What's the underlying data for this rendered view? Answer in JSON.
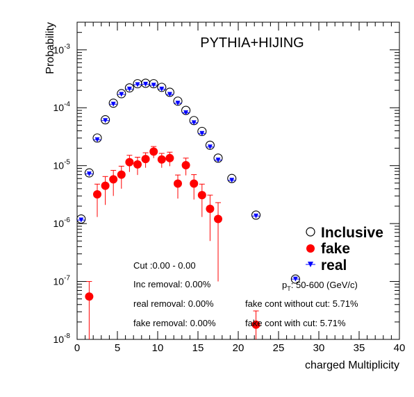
{
  "chart_data": {
    "type": "scatter",
    "title": "PYTHIA+HIJING",
    "xlabel": "charged Multiplicity",
    "ylabel": "Probability",
    "xlim": [
      0,
      40
    ],
    "ylim": [
      1e-08,
      0.003
    ],
    "y_scale": "log",
    "x_ticks": [
      "0",
      "5",
      "10",
      "15",
      "20",
      "25",
      "30",
      "35",
      "40"
    ],
    "y_ticks": [
      {
        "base": "10",
        "exp": "-3",
        "value": 0.001
      },
      {
        "base": "10",
        "exp": "-4",
        "value": 0.0001
      },
      {
        "base": "10",
        "exp": "-5",
        "value": 1e-05
      },
      {
        "base": "10",
        "exp": "-6",
        "value": 1e-06
      },
      {
        "base": "10",
        "exp": "-7",
        "value": 1e-07
      },
      {
        "base": "10",
        "exp": "-8",
        "value": 1e-08
      }
    ],
    "legend_position": "right",
    "series": [
      {
        "name": "Inclusive",
        "marker": "open-circle",
        "color": "#000000",
        "x": [
          0.5,
          1.5,
          2.5,
          3.5,
          4.5,
          5.5,
          6.5,
          7.5,
          8.5,
          9.5,
          10.5,
          11.5,
          12.5,
          13.5,
          14.5,
          15.5,
          16.5,
          17.5,
          19.2,
          22.2,
          27.1
        ],
        "y": [
          1.2e-06,
          7.5e-06,
          3e-05,
          6.2e-05,
          0.00012,
          0.000175,
          0.00022,
          0.00026,
          0.000265,
          0.00026,
          0.000225,
          0.000185,
          0.00013,
          9e-05,
          6e-05,
          3.9e-05,
          2.25e-05,
          1.35e-05,
          6e-06,
          1.4e-06,
          1.1e-07
        ]
      },
      {
        "name": "fake",
        "marker": "filled-circle",
        "color": "#ff0000",
        "x": [
          1.5,
          2.5,
          3.5,
          4.5,
          5.5,
          6.5,
          7.5,
          8.5,
          9.5,
          10.5,
          11.5,
          12.5,
          13.5,
          14.5,
          15.5,
          16.5,
          17.5,
          22.2
        ],
        "y": [
          5.5e-08,
          3.2e-06,
          4.5e-06,
          5.8e-06,
          7e-06,
          1.15e-05,
          1.05e-05,
          1.3e-05,
          1.75e-05,
          1.28e-05,
          1.35e-05,
          4.9e-06,
          1.02e-05,
          4.9e-06,
          3.1e-06,
          1.8e-06,
          1.2e-06,
          1.8e-08
        ],
        "y_err_low": [
          4.5e-08,
          1.9e-06,
          2.4e-06,
          2.8e-06,
          3e-06,
          3.7e-06,
          3.6e-06,
          3.8e-06,
          4e-06,
          3.6e-06,
          3.7e-06,
          2.2e-06,
          3.4e-06,
          2.3e-06,
          1.8e-06,
          1.3e-06,
          1.1e-06,
          1.5e-08
        ],
        "y_err_high": [
          4.5e-08,
          1.6e-06,
          2e-06,
          2.5e-06,
          2.8e-06,
          3.6e-06,
          3.5e-06,
          3.7e-06,
          3.9e-06,
          3.5e-06,
          3.6e-06,
          2e-06,
          3.3e-06,
          2.1e-06,
          1.7e-06,
          1.3e-06,
          1.1e-06,
          1.3e-08
        ]
      },
      {
        "name": "real",
        "marker": "triangle-down",
        "color": "#0000ff",
        "x": [
          0.5,
          1.5,
          2.5,
          3.5,
          4.5,
          5.5,
          6.5,
          7.5,
          8.5,
          9.5,
          10.5,
          11.5,
          12.5,
          13.5,
          14.5,
          15.5,
          16.5,
          17.5,
          19.2,
          22.2,
          27.1
        ],
        "y": [
          1.15e-06,
          7.2e-06,
          2.8e-05,
          6e-05,
          0.000115,
          0.00017,
          0.00021,
          0.00025,
          0.000255,
          0.000245,
          0.00021,
          0.00017,
          0.00012,
          8.2e-05,
          5.5e-05,
          3.6e-05,
          2.1e-05,
          1.25e-05,
          5.6e-06,
          1.35e-06,
          1.1e-07
        ]
      }
    ],
    "annotations": [
      "Cut :0.00 - 0.00",
      "Inc removal: 0.00%",
      "real removal: 0.00%",
      "fake removal: 0.00%",
      "fake cont without cut: 5.71%",
      "fake cont with cut: 5.71%"
    ],
    "pt_label": {
      "base": "p",
      "sub": "T",
      "text": ": 50-600 (GeV/c)"
    }
  }
}
